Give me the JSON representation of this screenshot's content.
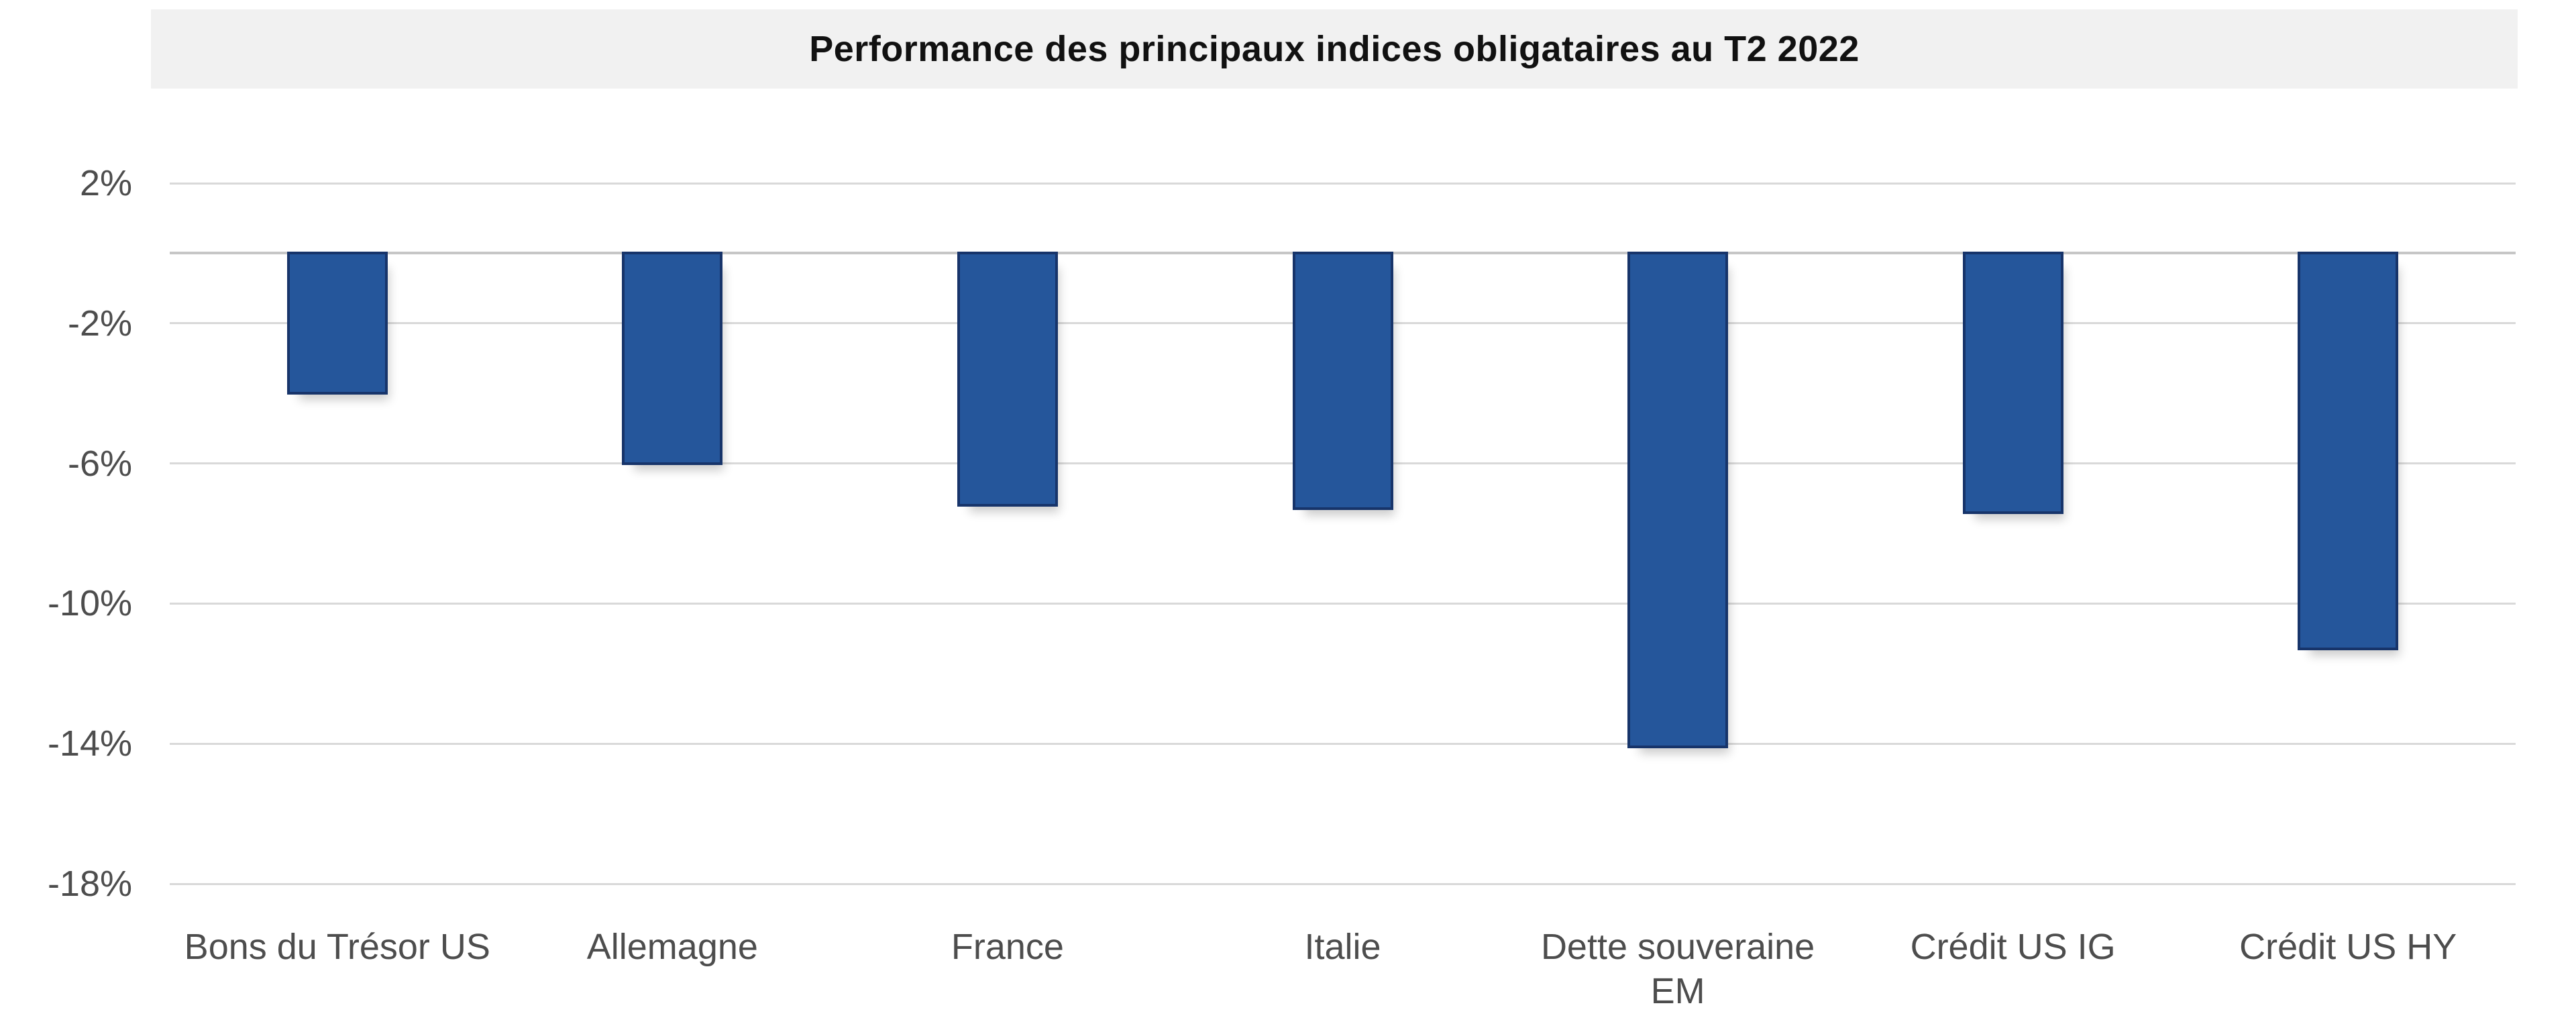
{
  "title_band": {
    "background": "#f1f1f1"
  },
  "chart_data": {
    "type": "bar",
    "title": "Performance des principaux indices obligataires au T2 2022",
    "categories": [
      "Bons du Trésor US",
      "Allemagne",
      "France",
      "Italie",
      "Dette souveraine EM",
      "Crédit US IG",
      "Crédit US HY"
    ],
    "values": [
      -4.0,
      -6.0,
      -7.2,
      -7.3,
      -14.1,
      -7.4,
      -11.3
    ],
    "unit": "%",
    "xlabel": "",
    "ylabel": "",
    "ylim": [
      -18,
      2
    ],
    "yticks": [
      2,
      -2,
      -6,
      -10,
      -14,
      -18
    ],
    "ytick_labels": [
      "2%",
      "-2%",
      "-6%",
      "-10%",
      "-14%",
      "-18%"
    ],
    "zero_baseline": true,
    "grid": true,
    "legend_position": "none",
    "bar_color": "#25569b",
    "bar_border_color": "#17346a",
    "gridline_color": "#d9d9d9",
    "zero_line_color": "#c6c6c6",
    "label_color": "#4d4d4d"
  }
}
